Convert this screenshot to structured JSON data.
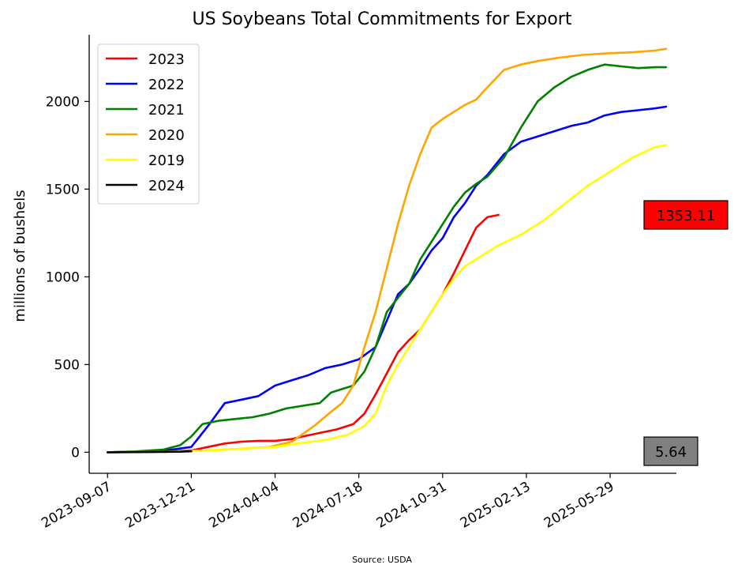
{
  "chart_data": {
    "type": "line",
    "title": "US Soybeans Total Commitments for Export",
    "xlabel": "",
    "ylabel": "millions of bushels",
    "source": "Source: USDA",
    "xlim": [
      "2023-08-15",
      "2025-08-20"
    ],
    "ylim": [
      -120,
      2380
    ],
    "x_ticks": [
      "2023-09-07",
      "2023-12-21",
      "2024-04-04",
      "2024-07-18",
      "2024-10-31",
      "2025-02-13",
      "2025-05-29"
    ],
    "y_ticks": [
      0,
      500,
      1000,
      1500,
      2000
    ],
    "grid": false,
    "legend_placement": "top-left",
    "series": [
      {
        "name": "2023",
        "color": "#ff0000",
        "points": [
          [
            "2023-09-07",
            0
          ],
          [
            "2023-10-12",
            2
          ],
          [
            "2023-11-16",
            5
          ],
          [
            "2023-12-21",
            10
          ],
          [
            "2024-01-11",
            30
          ],
          [
            "2024-02-01",
            50
          ],
          [
            "2024-02-22",
            60
          ],
          [
            "2024-03-14",
            65
          ],
          [
            "2024-04-04",
            65
          ],
          [
            "2024-04-25",
            75
          ],
          [
            "2024-05-09",
            90
          ],
          [
            "2024-05-30",
            110
          ],
          [
            "2024-06-20",
            130
          ],
          [
            "2024-07-11",
            160
          ],
          [
            "2024-07-25",
            220
          ],
          [
            "2024-08-08",
            330
          ],
          [
            "2024-08-22",
            450
          ],
          [
            "2024-09-05",
            570
          ],
          [
            "2024-09-19",
            640
          ],
          [
            "2024-10-03",
            700
          ],
          [
            "2024-10-17",
            800
          ],
          [
            "2024-10-31",
            900
          ],
          [
            "2024-11-14",
            1020
          ],
          [
            "2024-11-28",
            1150
          ],
          [
            "2024-12-12",
            1280
          ],
          [
            "2024-12-26",
            1340
          ],
          [
            "2025-01-09",
            1353
          ]
        ]
      },
      {
        "name": "2022",
        "color": "#0000ff",
        "points": [
          [
            "2023-09-07",
            0
          ],
          [
            "2023-10-12",
            3
          ],
          [
            "2023-11-16",
            8
          ],
          [
            "2023-12-21",
            30
          ],
          [
            "2024-01-11",
            150
          ],
          [
            "2024-02-01",
            280
          ],
          [
            "2024-02-22",
            300
          ],
          [
            "2024-03-14",
            320
          ],
          [
            "2024-04-04",
            380
          ],
          [
            "2024-04-25",
            410
          ],
          [
            "2024-05-16",
            440
          ],
          [
            "2024-06-06",
            480
          ],
          [
            "2024-06-27",
            500
          ],
          [
            "2024-07-18",
            530
          ],
          [
            "2024-08-08",
            600
          ],
          [
            "2024-08-22",
            750
          ],
          [
            "2024-09-05",
            900
          ],
          [
            "2024-09-19",
            960
          ],
          [
            "2024-10-03",
            1050
          ],
          [
            "2024-10-17",
            1150
          ],
          [
            "2024-10-31",
            1220
          ],
          [
            "2024-11-14",
            1340
          ],
          [
            "2024-11-28",
            1420
          ],
          [
            "2024-12-12",
            1520
          ],
          [
            "2024-12-26",
            1580
          ],
          [
            "2025-01-16",
            1700
          ],
          [
            "2025-02-06",
            1770
          ],
          [
            "2025-02-27",
            1800
          ],
          [
            "2025-03-20",
            1830
          ],
          [
            "2025-04-10",
            1860
          ],
          [
            "2025-05-01",
            1880
          ],
          [
            "2025-05-22",
            1920
          ],
          [
            "2025-06-12",
            1940
          ],
          [
            "2025-07-03",
            1950
          ],
          [
            "2025-07-24",
            1960
          ],
          [
            "2025-08-07",
            1970
          ]
        ]
      },
      {
        "name": "2021",
        "color": "#008000",
        "points": [
          [
            "2023-09-07",
            0
          ],
          [
            "2023-10-12",
            5
          ],
          [
            "2023-11-16",
            15
          ],
          [
            "2023-12-07",
            40
          ],
          [
            "2023-12-21",
            90
          ],
          [
            "2024-01-04",
            160
          ],
          [
            "2024-01-25",
            180
          ],
          [
            "2024-02-15",
            190
          ],
          [
            "2024-03-07",
            200
          ],
          [
            "2024-03-28",
            220
          ],
          [
            "2024-04-18",
            250
          ],
          [
            "2024-05-09",
            265
          ],
          [
            "2024-05-30",
            280
          ],
          [
            "2024-06-13",
            340
          ],
          [
            "2024-06-27",
            360
          ],
          [
            "2024-07-11",
            380
          ],
          [
            "2024-07-25",
            460
          ],
          [
            "2024-08-08",
            600
          ],
          [
            "2024-08-22",
            800
          ],
          [
            "2024-09-05",
            880
          ],
          [
            "2024-09-19",
            960
          ],
          [
            "2024-10-03",
            1100
          ],
          [
            "2024-10-17",
            1200
          ],
          [
            "2024-10-31",
            1300
          ],
          [
            "2024-11-14",
            1400
          ],
          [
            "2024-11-28",
            1480
          ],
          [
            "2024-12-12",
            1530
          ],
          [
            "2024-12-26",
            1570
          ],
          [
            "2025-01-16",
            1680
          ],
          [
            "2025-02-06",
            1850
          ],
          [
            "2025-02-27",
            2000
          ],
          [
            "2025-03-20",
            2080
          ],
          [
            "2025-04-10",
            2140
          ],
          [
            "2025-05-01",
            2180
          ],
          [
            "2025-05-22",
            2210
          ],
          [
            "2025-06-12",
            2200
          ],
          [
            "2025-07-03",
            2190
          ],
          [
            "2025-07-24",
            2195
          ],
          [
            "2025-08-07",
            2195
          ]
        ]
      },
      {
        "name": "2020",
        "color": "#ffa500",
        "points": [
          [
            "2023-09-07",
            0
          ],
          [
            "2023-11-16",
            3
          ],
          [
            "2024-01-11",
            10
          ],
          [
            "2024-02-22",
            20
          ],
          [
            "2024-03-28",
            30
          ],
          [
            "2024-04-25",
            60
          ],
          [
            "2024-05-23",
            150
          ],
          [
            "2024-06-13",
            230
          ],
          [
            "2024-06-27",
            280
          ],
          [
            "2024-07-11",
            380
          ],
          [
            "2024-07-25",
            600
          ],
          [
            "2024-08-08",
            800
          ],
          [
            "2024-08-22",
            1050
          ],
          [
            "2024-09-05",
            1300
          ],
          [
            "2024-09-19",
            1520
          ],
          [
            "2024-10-03",
            1700
          ],
          [
            "2024-10-17",
            1850
          ],
          [
            "2024-10-31",
            1900
          ],
          [
            "2024-11-14",
            1940
          ],
          [
            "2024-11-28",
            1980
          ],
          [
            "2024-12-12",
            2010
          ],
          [
            "2024-12-26",
            2080
          ],
          [
            "2025-01-16",
            2180
          ],
          [
            "2025-02-06",
            2210
          ],
          [
            "2025-02-27",
            2230
          ],
          [
            "2025-03-27",
            2250
          ],
          [
            "2025-04-24",
            2265
          ],
          [
            "2025-05-29",
            2275
          ],
          [
            "2025-06-26",
            2280
          ],
          [
            "2025-07-24",
            2290
          ],
          [
            "2025-08-07",
            2300
          ]
        ]
      },
      {
        "name": "2019",
        "color": "#ffff00",
        "points": [
          [
            "2023-09-07",
            0
          ],
          [
            "2023-11-16",
            2
          ],
          [
            "2024-01-11",
            10
          ],
          [
            "2024-02-22",
            20
          ],
          [
            "2024-04-04",
            30
          ],
          [
            "2024-05-02",
            50
          ],
          [
            "2024-06-06",
            70
          ],
          [
            "2024-07-04",
            100
          ],
          [
            "2024-07-25",
            150
          ],
          [
            "2024-08-08",
            220
          ],
          [
            "2024-08-22",
            380
          ],
          [
            "2024-09-05",
            500
          ],
          [
            "2024-09-19",
            600
          ],
          [
            "2024-10-03",
            700
          ],
          [
            "2024-10-17",
            800
          ],
          [
            "2024-10-31",
            900
          ],
          [
            "2024-11-14",
            990
          ],
          [
            "2024-11-28",
            1060
          ],
          [
            "2024-12-19",
            1120
          ],
          [
            "2025-01-09",
            1180
          ],
          [
            "2025-02-06",
            1240
          ],
          [
            "2025-03-06",
            1320
          ],
          [
            "2025-04-03",
            1420
          ],
          [
            "2025-05-01",
            1520
          ],
          [
            "2025-05-29",
            1600
          ],
          [
            "2025-06-26",
            1680
          ],
          [
            "2025-07-24",
            1740
          ],
          [
            "2025-08-07",
            1750
          ]
        ]
      },
      {
        "name": "2024",
        "color": "#000000",
        "points": [
          [
            "2023-09-07",
            0
          ],
          [
            "2023-10-26",
            1
          ],
          [
            "2023-12-07",
            3
          ],
          [
            "2023-12-21",
            5.64
          ]
        ]
      }
    ],
    "annotations": [
      {
        "label": "1353.11",
        "y": 1353.11,
        "fill": "#ff0000"
      },
      {
        "label": "5.64",
        "y": 5.64,
        "fill": "#808080"
      }
    ]
  }
}
